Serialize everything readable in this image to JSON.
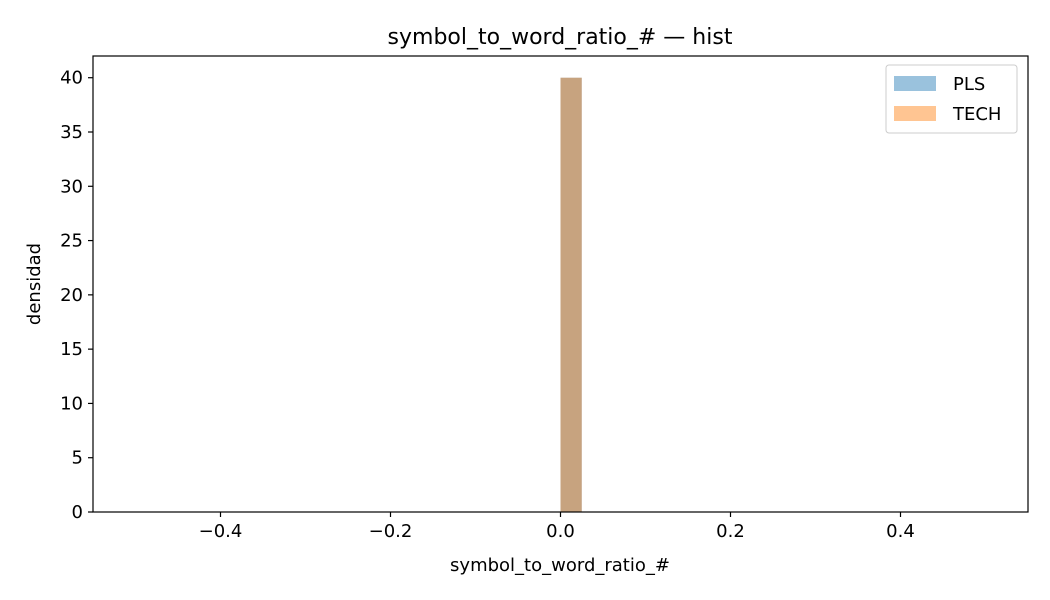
{
  "chart_data": {
    "type": "bar",
    "title": "symbol_to_word_ratio_# — hist",
    "xlabel": "symbol_to_word_ratio_#",
    "ylabel": "densidad",
    "xlim": [
      -0.55,
      0.55
    ],
    "ylim": [
      0,
      42
    ],
    "xticks": [
      -0.4,
      -0.2,
      0.0,
      0.2,
      0.4
    ],
    "xtick_labels": [
      "−0.4",
      "−0.2",
      "0.0",
      "0.2",
      "0.4"
    ],
    "yticks": [
      0,
      5,
      10,
      15,
      20,
      25,
      30,
      35,
      40
    ],
    "yticklabels": [
      "0",
      "5",
      "10",
      "15",
      "20",
      "25",
      "30",
      "35",
      "40"
    ],
    "grid": false,
    "legend_position": "top-right",
    "series": [
      {
        "name": "PLS",
        "color": "#1f77b4",
        "alpha": 0.45,
        "bins": [
          {
            "x0": 0.0,
            "x1": 0.025,
            "density": 40
          }
        ]
      },
      {
        "name": "TECH",
        "color": "#ff7f0e",
        "alpha": 0.45,
        "bins": [
          {
            "x0": 0.0,
            "x1": 0.025,
            "density": 40
          }
        ]
      }
    ]
  }
}
